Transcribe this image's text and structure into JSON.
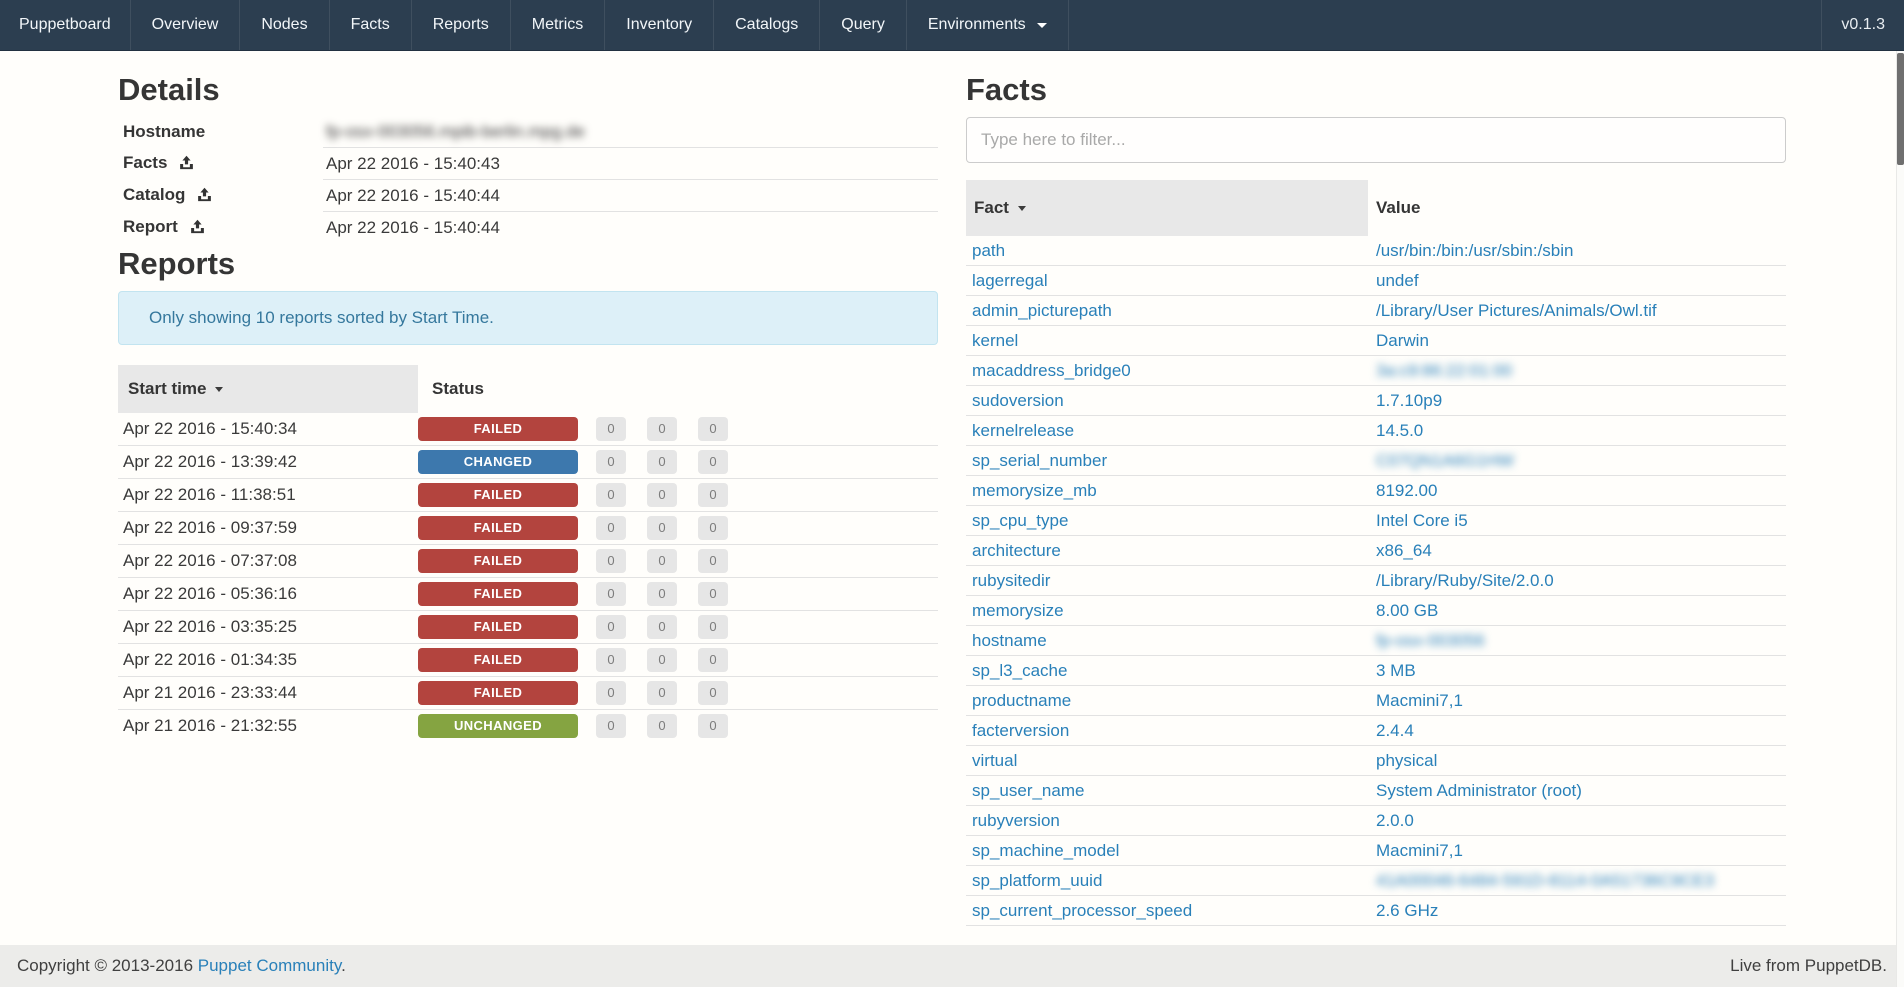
{
  "navbar": {
    "brand": "Puppetboard",
    "items": [
      "Overview",
      "Nodes",
      "Facts",
      "Reports",
      "Metrics",
      "Inventory",
      "Catalogs",
      "Query"
    ],
    "dropdown": {
      "label": "Environments",
      "icon": "caret-down-icon"
    },
    "version": "v0.1.3"
  },
  "details": {
    "title": "Details",
    "rows": [
      {
        "label": "Hostname",
        "value": "fp-osx-003056.mpib-berlin.mpg.de",
        "redacted": true
      },
      {
        "label": "Facts",
        "icon": "upload-icon",
        "value": "Apr 22 2016 - 15:40:43"
      },
      {
        "label": "Catalog",
        "icon": "upload-icon",
        "value": "Apr 22 2016 - 15:40:44"
      },
      {
        "label": "Report",
        "icon": "upload-icon",
        "value": "Apr 22 2016 - 15:40:44"
      }
    ]
  },
  "reports": {
    "title": "Reports",
    "alert": "Only showing 10 reports sorted by Start Time.",
    "columns": {
      "start_time": "Start time",
      "status": "Status"
    },
    "sort_icon": "caret-down-icon",
    "rows": [
      {
        "start_time": "Apr 22 2016 - 15:40:34",
        "status": "FAILED",
        "counts": [
          "0",
          "0",
          "0"
        ]
      },
      {
        "start_time": "Apr 22 2016 - 13:39:42",
        "status": "CHANGED",
        "counts": [
          "0",
          "0",
          "0"
        ]
      },
      {
        "start_time": "Apr 22 2016 - 11:38:51",
        "status": "FAILED",
        "counts": [
          "0",
          "0",
          "0"
        ]
      },
      {
        "start_time": "Apr 22 2016 - 09:37:59",
        "status": "FAILED",
        "counts": [
          "0",
          "0",
          "0"
        ]
      },
      {
        "start_time": "Apr 22 2016 - 07:37:08",
        "status": "FAILED",
        "counts": [
          "0",
          "0",
          "0"
        ]
      },
      {
        "start_time": "Apr 22 2016 - 05:36:16",
        "status": "FAILED",
        "counts": [
          "0",
          "0",
          "0"
        ]
      },
      {
        "start_time": "Apr 22 2016 - 03:35:25",
        "status": "FAILED",
        "counts": [
          "0",
          "0",
          "0"
        ]
      },
      {
        "start_time": "Apr 22 2016 - 01:34:35",
        "status": "FAILED",
        "counts": [
          "0",
          "0",
          "0"
        ]
      },
      {
        "start_time": "Apr 21 2016 - 23:33:44",
        "status": "FAILED",
        "counts": [
          "0",
          "0",
          "0"
        ]
      },
      {
        "start_time": "Apr 21 2016 - 21:32:55",
        "status": "UNCHANGED",
        "counts": [
          "0",
          "0",
          "0"
        ]
      }
    ]
  },
  "facts": {
    "title": "Facts",
    "filter_placeholder": "Type here to filter...",
    "columns": {
      "fact": "Fact",
      "value": "Value"
    },
    "sort_icon": "caret-down-icon",
    "rows": [
      {
        "fact": "path",
        "value": "/usr/bin:/bin:/usr/sbin:/sbin"
      },
      {
        "fact": "lagerregal",
        "value": "undef"
      },
      {
        "fact": "admin_picturepath",
        "value": "/Library/User Pictures/Animals/Owl.tif"
      },
      {
        "fact": "kernel",
        "value": "Darwin"
      },
      {
        "fact": "macaddress_bridge0",
        "value": "3a:c9:86:22:01:00",
        "redacted": true
      },
      {
        "fact": "sudoversion",
        "value": "1.7.10p9"
      },
      {
        "fact": "kernelrelease",
        "value": "14.5.0"
      },
      {
        "fact": "sp_serial_number",
        "value": "C07QN1A6G1HW",
        "redacted": true
      },
      {
        "fact": "memorysize_mb",
        "value": "8192.00"
      },
      {
        "fact": "sp_cpu_type",
        "value": "Intel Core i5"
      },
      {
        "fact": "architecture",
        "value": "x86_64"
      },
      {
        "fact": "rubysitedir",
        "value": "/Library/Ruby/Site/2.0.0"
      },
      {
        "fact": "memorysize",
        "value": "8.00 GB"
      },
      {
        "fact": "hostname",
        "value": "fp-osx-003056",
        "redacted": true
      },
      {
        "fact": "sp_l3_cache",
        "value": "3 MB"
      },
      {
        "fact": "productname",
        "value": "Macmini7,1"
      },
      {
        "fact": "facterversion",
        "value": "2.4.4"
      },
      {
        "fact": "virtual",
        "value": "physical"
      },
      {
        "fact": "sp_user_name",
        "value": "System Administrator (root)"
      },
      {
        "fact": "rubyversion",
        "value": "2.0.0"
      },
      {
        "fact": "sp_machine_model",
        "value": "Macmini7,1"
      },
      {
        "fact": "sp_platform_uuid",
        "value": "41A00046-6484-591D-8114-0A51736C9CE3",
        "redacted": true
      },
      {
        "fact": "sp_current_processor_speed",
        "value": "2.6 GHz"
      }
    ]
  },
  "footer": {
    "copyright_prefix": "Copyright © 2013-2016 ",
    "copyright_link": "Puppet Community",
    "copyright_suffix": ".",
    "live_text": "Live from PuppetDB."
  },
  "colors": {
    "navbar_bg": "#2c3e50",
    "link": "#2980b9",
    "th_sorted_bg": "#e8e8e8",
    "alert_bg": "#ddf0f8",
    "alert_text": "#35789d",
    "footer_bg": "#ececea",
    "status": {
      "FAILED": "#b3443e",
      "CHANGED": "#3d78ad",
      "UNCHANGED": "#85a441"
    },
    "count_badge_bg": "#e6e6e6"
  }
}
